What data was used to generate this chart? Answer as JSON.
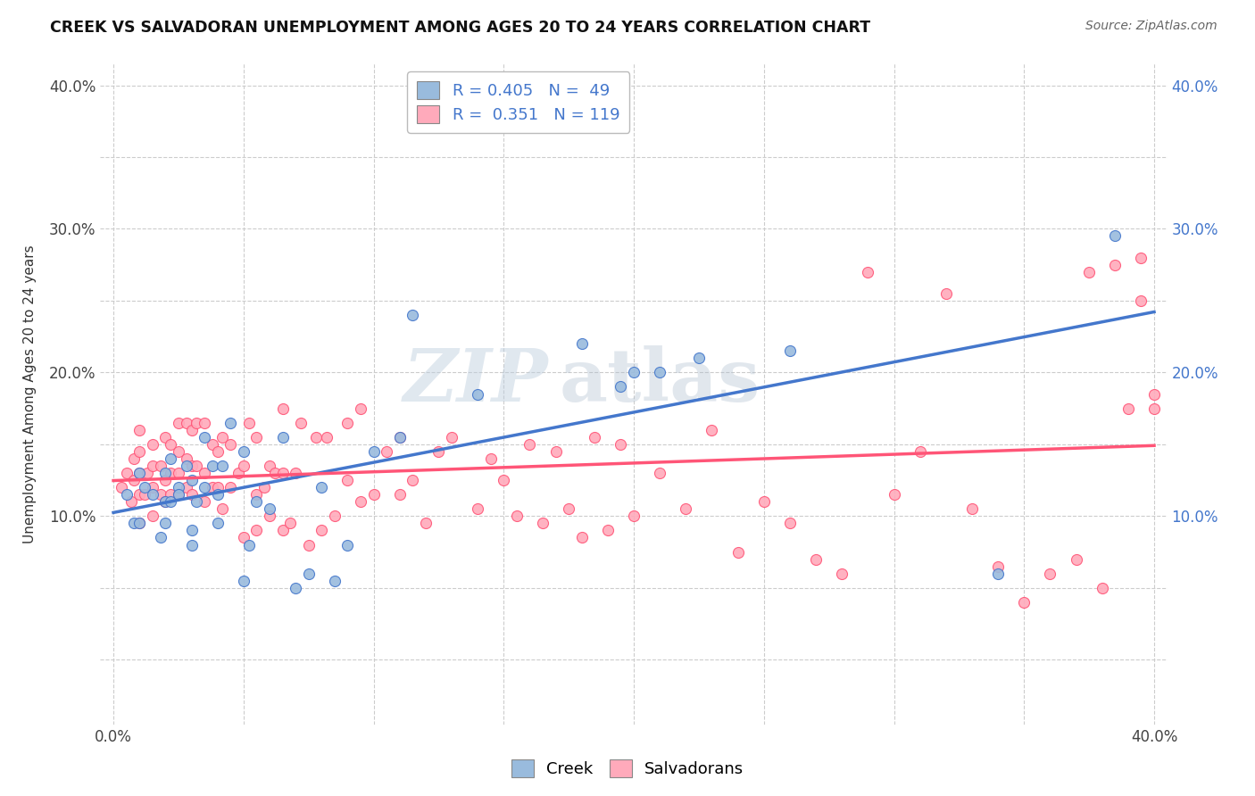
{
  "title": "CREEK VS SALVADORAN UNEMPLOYMENT AMONG AGES 20 TO 24 YEARS CORRELATION CHART",
  "source": "Source: ZipAtlas.com",
  "ylabel": "Unemployment Among Ages 20 to 24 years",
  "xlim": [
    -0.005,
    0.405
  ],
  "ylim": [
    -0.045,
    0.415
  ],
  "xticks": [
    0.0,
    0.05,
    0.1,
    0.15,
    0.2,
    0.25,
    0.3,
    0.35,
    0.4
  ],
  "yticks": [
    0.0,
    0.05,
    0.1,
    0.15,
    0.2,
    0.25,
    0.3,
    0.35,
    0.4
  ],
  "creek_color": "#99BBDD",
  "salvadoran_color": "#FFAABB",
  "creek_line_color": "#4477CC",
  "salvadoran_line_color": "#FF5577",
  "creek_R": 0.405,
  "creek_N": 49,
  "salvadoran_R": 0.351,
  "salvadoran_N": 119,
  "watermark_zip": "ZIP",
  "watermark_atlas": "atlas",
  "background_color": "#ffffff",
  "grid_color": "#cccccc",
  "creek_x": [
    0.005,
    0.008,
    0.01,
    0.01,
    0.012,
    0.015,
    0.018,
    0.02,
    0.02,
    0.02,
    0.022,
    0.022,
    0.025,
    0.025,
    0.028,
    0.03,
    0.03,
    0.03,
    0.032,
    0.035,
    0.035,
    0.038,
    0.04,
    0.04,
    0.042,
    0.045,
    0.05,
    0.05,
    0.052,
    0.055,
    0.06,
    0.065,
    0.07,
    0.075,
    0.08,
    0.085,
    0.09,
    0.1,
    0.11,
    0.115,
    0.14,
    0.18,
    0.195,
    0.2,
    0.21,
    0.225,
    0.26,
    0.34,
    0.385
  ],
  "creek_y": [
    0.115,
    0.095,
    0.13,
    0.095,
    0.12,
    0.115,
    0.085,
    0.095,
    0.13,
    0.11,
    0.14,
    0.11,
    0.12,
    0.115,
    0.135,
    0.08,
    0.09,
    0.125,
    0.11,
    0.155,
    0.12,
    0.135,
    0.095,
    0.115,
    0.135,
    0.165,
    0.145,
    0.055,
    0.08,
    0.11,
    0.105,
    0.155,
    0.05,
    0.06,
    0.12,
    0.055,
    0.08,
    0.145,
    0.155,
    0.24,
    0.185,
    0.22,
    0.19,
    0.2,
    0.2,
    0.21,
    0.215,
    0.06,
    0.295
  ],
  "salvadoran_x": [
    0.003,
    0.005,
    0.007,
    0.008,
    0.008,
    0.01,
    0.01,
    0.01,
    0.01,
    0.01,
    0.012,
    0.013,
    0.015,
    0.015,
    0.015,
    0.015,
    0.018,
    0.018,
    0.02,
    0.02,
    0.02,
    0.022,
    0.022,
    0.022,
    0.025,
    0.025,
    0.025,
    0.025,
    0.028,
    0.028,
    0.028,
    0.03,
    0.03,
    0.03,
    0.032,
    0.032,
    0.035,
    0.035,
    0.035,
    0.038,
    0.038,
    0.04,
    0.04,
    0.042,
    0.042,
    0.045,
    0.045,
    0.048,
    0.05,
    0.05,
    0.052,
    0.055,
    0.055,
    0.055,
    0.058,
    0.06,
    0.06,
    0.062,
    0.065,
    0.065,
    0.065,
    0.068,
    0.07,
    0.072,
    0.075,
    0.078,
    0.08,
    0.082,
    0.085,
    0.09,
    0.09,
    0.095,
    0.095,
    0.1,
    0.105,
    0.11,
    0.11,
    0.115,
    0.12,
    0.125,
    0.13,
    0.14,
    0.145,
    0.15,
    0.155,
    0.16,
    0.165,
    0.17,
    0.175,
    0.18,
    0.185,
    0.19,
    0.195,
    0.2,
    0.21,
    0.22,
    0.23,
    0.24,
    0.25,
    0.26,
    0.27,
    0.28,
    0.29,
    0.3,
    0.31,
    0.32,
    0.33,
    0.34,
    0.35,
    0.36,
    0.37,
    0.375,
    0.38,
    0.385,
    0.39,
    0.395,
    0.395,
    0.4,
    0.4
  ],
  "salvadoran_y": [
    0.12,
    0.13,
    0.11,
    0.125,
    0.14,
    0.095,
    0.115,
    0.13,
    0.145,
    0.16,
    0.115,
    0.13,
    0.1,
    0.12,
    0.135,
    0.15,
    0.115,
    0.135,
    0.11,
    0.125,
    0.155,
    0.115,
    0.13,
    0.15,
    0.115,
    0.13,
    0.145,
    0.165,
    0.12,
    0.14,
    0.165,
    0.115,
    0.135,
    0.16,
    0.135,
    0.165,
    0.11,
    0.13,
    0.165,
    0.12,
    0.15,
    0.12,
    0.145,
    0.105,
    0.155,
    0.12,
    0.15,
    0.13,
    0.085,
    0.135,
    0.165,
    0.09,
    0.115,
    0.155,
    0.12,
    0.1,
    0.135,
    0.13,
    0.09,
    0.13,
    0.175,
    0.095,
    0.13,
    0.165,
    0.08,
    0.155,
    0.09,
    0.155,
    0.1,
    0.125,
    0.165,
    0.11,
    0.175,
    0.115,
    0.145,
    0.115,
    0.155,
    0.125,
    0.095,
    0.145,
    0.155,
    0.105,
    0.14,
    0.125,
    0.1,
    0.15,
    0.095,
    0.145,
    0.105,
    0.085,
    0.155,
    0.09,
    0.15,
    0.1,
    0.13,
    0.105,
    0.16,
    0.075,
    0.11,
    0.095,
    0.07,
    0.06,
    0.27,
    0.115,
    0.145,
    0.255,
    0.105,
    0.065,
    0.04,
    0.06,
    0.07,
    0.27,
    0.05,
    0.275,
    0.175,
    0.25,
    0.28,
    0.175,
    0.185
  ]
}
